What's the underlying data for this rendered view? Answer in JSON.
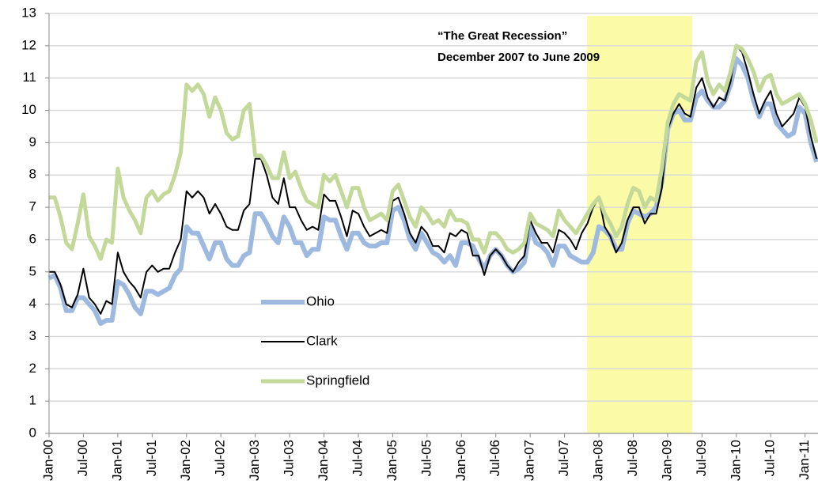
{
  "chart_data": {
    "type": "line",
    "annotation": [
      "“The Great Recession”",
      "December 2007 to June 2009"
    ],
    "categories": [
      "Jan-00",
      null,
      null,
      null,
      null,
      null,
      "Jul-00",
      null,
      null,
      null,
      null,
      null,
      "Jan-01",
      null,
      null,
      null,
      null,
      null,
      "Jul-01",
      null,
      null,
      null,
      null,
      null,
      "Jan-02",
      null,
      null,
      null,
      null,
      null,
      "Jul-02",
      null,
      null,
      null,
      null,
      null,
      "Jan-03",
      null,
      null,
      null,
      null,
      null,
      "Jul-03",
      null,
      null,
      null,
      null,
      null,
      "Jan-04",
      null,
      null,
      null,
      null,
      null,
      "Jul-04",
      null,
      null,
      null,
      null,
      null,
      "Jan-05",
      null,
      null,
      null,
      null,
      null,
      "Jul-05",
      null,
      null,
      null,
      null,
      null,
      "Jan-06",
      null,
      null,
      null,
      null,
      null,
      "Jul-06",
      null,
      null,
      null,
      null,
      null,
      "Jan-07",
      null,
      null,
      null,
      null,
      null,
      "Jul-07",
      null,
      null,
      null,
      null,
      null,
      "Jan-08",
      null,
      null,
      null,
      null,
      null,
      "Jul-08",
      null,
      null,
      null,
      null,
      null,
      "Jan-09",
      null,
      null,
      null,
      null,
      null,
      "Jul-09",
      null,
      null,
      null,
      null,
      null,
      "Jan-10",
      null,
      null,
      null,
      null,
      null,
      "Jul-10",
      null,
      null,
      null,
      null,
      null,
      "Jan-11",
      null,
      null
    ],
    "series": [
      {
        "name": "Ohio",
        "color": "#9db9e0",
        "line_width": 6,
        "values": [
          4.8,
          4.9,
          4.5,
          3.8,
          3.8,
          4.2,
          4.2,
          4.0,
          3.8,
          3.4,
          3.5,
          3.5,
          4.7,
          4.6,
          4.3,
          3.9,
          3.7,
          4.4,
          4.4,
          4.3,
          4.4,
          4.5,
          4.9,
          5.1,
          6.4,
          6.2,
          6.2,
          5.8,
          5.4,
          5.9,
          5.9,
          5.4,
          5.2,
          5.2,
          5.5,
          5.6,
          6.8,
          6.8,
          6.5,
          6.1,
          5.9,
          6.7,
          6.4,
          5.9,
          5.9,
          5.5,
          5.7,
          5.7,
          6.7,
          6.6,
          6.6,
          6.1,
          5.7,
          6.2,
          6.2,
          5.9,
          5.8,
          5.8,
          5.9,
          5.9,
          6.9,
          7.0,
          6.6,
          6.0,
          5.7,
          6.2,
          5.9,
          5.6,
          5.5,
          5.3,
          5.5,
          5.2,
          5.9,
          5.9,
          5.8,
          5.4,
          5.1,
          5.5,
          5.7,
          5.5,
          5.2,
          5.0,
          5.1,
          5.3,
          6.4,
          5.9,
          5.8,
          5.6,
          5.2,
          5.8,
          5.8,
          5.5,
          5.4,
          5.3,
          5.3,
          5.6,
          6.4,
          6.3,
          6.1,
          5.7,
          5.7,
          6.5,
          6.9,
          6.8,
          6.7,
          6.8,
          7.0,
          7.8,
          9.4,
          9.9,
          10.0,
          9.7,
          9.7,
          10.4,
          10.6,
          10.3,
          10.1,
          10.1,
          10.3,
          10.8,
          11.6,
          11.4,
          11.0,
          10.3,
          9.8,
          10.2,
          10.2,
          9.6,
          9.4,
          9.2,
          9.3,
          10.1,
          9.9,
          9.0,
          8.4
        ]
      },
      {
        "name": "Clark",
        "color": "#000000",
        "line_width": 2,
        "values": [
          5.0,
          5.0,
          4.6,
          4.0,
          3.9,
          4.3,
          5.1,
          4.2,
          4.0,
          3.7,
          4.1,
          4.0,
          5.6,
          5.0,
          4.7,
          4.5,
          4.2,
          5.0,
          5.2,
          5.0,
          5.1,
          5.1,
          5.6,
          6.0,
          7.5,
          7.3,
          7.5,
          7.3,
          6.8,
          7.1,
          6.8,
          6.4,
          6.3,
          6.3,
          6.9,
          7.1,
          8.5,
          8.5,
          8.0,
          7.3,
          7.1,
          7.9,
          7.0,
          7.0,
          6.6,
          6.3,
          6.4,
          6.3,
          7.4,
          7.2,
          7.2,
          6.7,
          6.1,
          6.9,
          6.8,
          6.4,
          6.1,
          6.2,
          6.3,
          6.2,
          7.2,
          7.3,
          6.8,
          6.2,
          5.9,
          6.4,
          6.2,
          5.8,
          5.8,
          5.6,
          6.2,
          6.1,
          6.3,
          6.2,
          5.5,
          5.5,
          4.9,
          5.5,
          5.7,
          5.5,
          5.2,
          5.0,
          5.3,
          5.5,
          6.6,
          6.2,
          5.9,
          5.9,
          5.6,
          6.3,
          6.2,
          6.0,
          5.7,
          6.2,
          6.5,
          7.0,
          7.3,
          6.4,
          6.1,
          5.6,
          5.9,
          6.6,
          7.0,
          7.0,
          6.5,
          6.8,
          6.8,
          7.6,
          9.4,
          9.9,
          10.2,
          9.9,
          9.8,
          10.7,
          11.0,
          10.4,
          10.1,
          10.4,
          10.3,
          10.9,
          12.0,
          11.8,
          11.2,
          10.5,
          9.9,
          10.3,
          10.6,
          9.9,
          9.5,
          9.7,
          9.9,
          10.4,
          10.1,
          9.2,
          8.5
        ]
      },
      {
        "name": "Springfield",
        "color": "#c3d99a",
        "line_width": 5,
        "values": [
          7.3,
          7.3,
          6.7,
          5.9,
          5.7,
          6.5,
          7.4,
          6.1,
          5.8,
          5.4,
          6.0,
          5.9,
          8.2,
          7.3,
          6.9,
          6.6,
          6.2,
          7.3,
          7.5,
          7.2,
          7.4,
          7.5,
          8.0,
          8.7,
          10.8,
          10.6,
          10.8,
          10.5,
          9.8,
          10.4,
          10.0,
          9.3,
          9.1,
          9.2,
          10.0,
          10.2,
          8.6,
          8.6,
          8.3,
          7.9,
          7.9,
          8.7,
          7.9,
          8.1,
          7.6,
          7.2,
          7.1,
          7.0,
          8.0,
          7.8,
          8.0,
          7.5,
          7.0,
          7.6,
          7.6,
          7.0,
          6.6,
          6.7,
          6.8,
          6.6,
          7.5,
          7.7,
          7.2,
          6.7,
          6.4,
          7.0,
          6.8,
          6.5,
          6.6,
          6.4,
          6.9,
          6.6,
          6.6,
          6.5,
          6.0,
          6.0,
          5.6,
          6.2,
          6.2,
          6.0,
          5.7,
          5.6,
          5.7,
          5.9,
          6.8,
          6.5,
          6.4,
          6.3,
          6.1,
          6.9,
          6.6,
          6.4,
          6.2,
          6.5,
          6.8,
          7.1,
          7.3,
          6.8,
          6.5,
          6.1,
          6.4,
          7.1,
          7.6,
          7.5,
          7.0,
          7.3,
          7.2,
          8.2,
          9.6,
          10.2,
          10.5,
          10.4,
          10.3,
          11.5,
          11.8,
          10.9,
          10.5,
          10.8,
          10.6,
          11.2,
          12.0,
          11.9,
          11.6,
          11.2,
          10.6,
          11.0,
          11.1,
          10.5,
          10.2,
          10.3,
          10.4,
          10.5,
          10.2,
          9.7,
          9.0
        ]
      }
    ],
    "ylim": [
      0,
      13
    ],
    "yticks": [
      0,
      1,
      2,
      3,
      4,
      5,
      6,
      7,
      8,
      9,
      10,
      11,
      12,
      13
    ],
    "grid": true,
    "legend": "inside"
  }
}
